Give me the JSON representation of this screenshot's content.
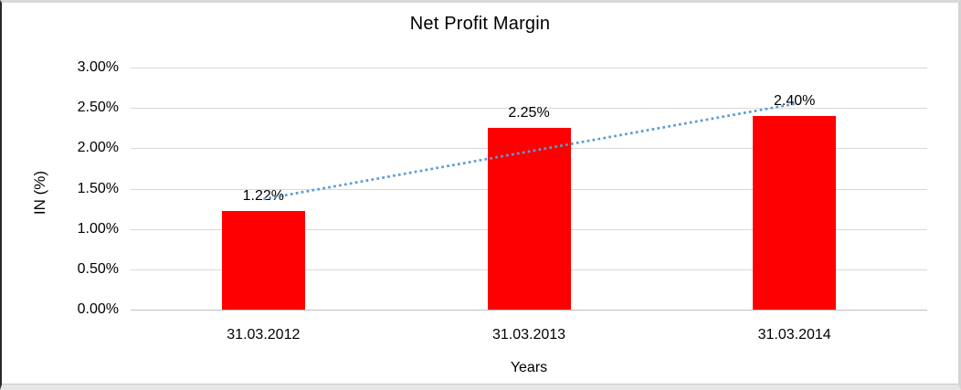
{
  "frame": {
    "background": "#ffffff",
    "border_left_color": "#2a2a2a",
    "border_light_color": "#d9d9d9"
  },
  "chart_data": {
    "type": "bar",
    "title": "Net Profit Margin",
    "xlabel": "Years",
    "ylabel": "IN (%)",
    "categories": [
      "31.03.2012",
      "31.03.2013",
      "31.03.2014"
    ],
    "series": [
      {
        "name": "Net Profit Margin",
        "values": [
          1.22,
          2.25,
          2.4
        ],
        "data_labels": [
          "1.22%",
          "2.25%",
          "2.40%"
        ],
        "color": "#ff0000"
      }
    ],
    "ylim": [
      0,
      3
    ],
    "yticks": [
      {
        "value": 0,
        "label": "0.00%"
      },
      {
        "value": 0.5,
        "label": "0.50%"
      },
      {
        "value": 1,
        "label": "1.00%"
      },
      {
        "value": 1.5,
        "label": "1.50%"
      },
      {
        "value": 2,
        "label": "2.00%"
      },
      {
        "value": 2.5,
        "label": "2.50%"
      },
      {
        "value": 3,
        "label": "3.00%"
      }
    ],
    "grid": true,
    "gridline_color": "#d9d9d9",
    "axis_line_color": "#bfbfbf",
    "legend": "none",
    "trendline": {
      "type": "linear",
      "style": "dotted",
      "color": "#5b9bd5",
      "start_value": 1.37,
      "end_value": 2.55
    }
  }
}
